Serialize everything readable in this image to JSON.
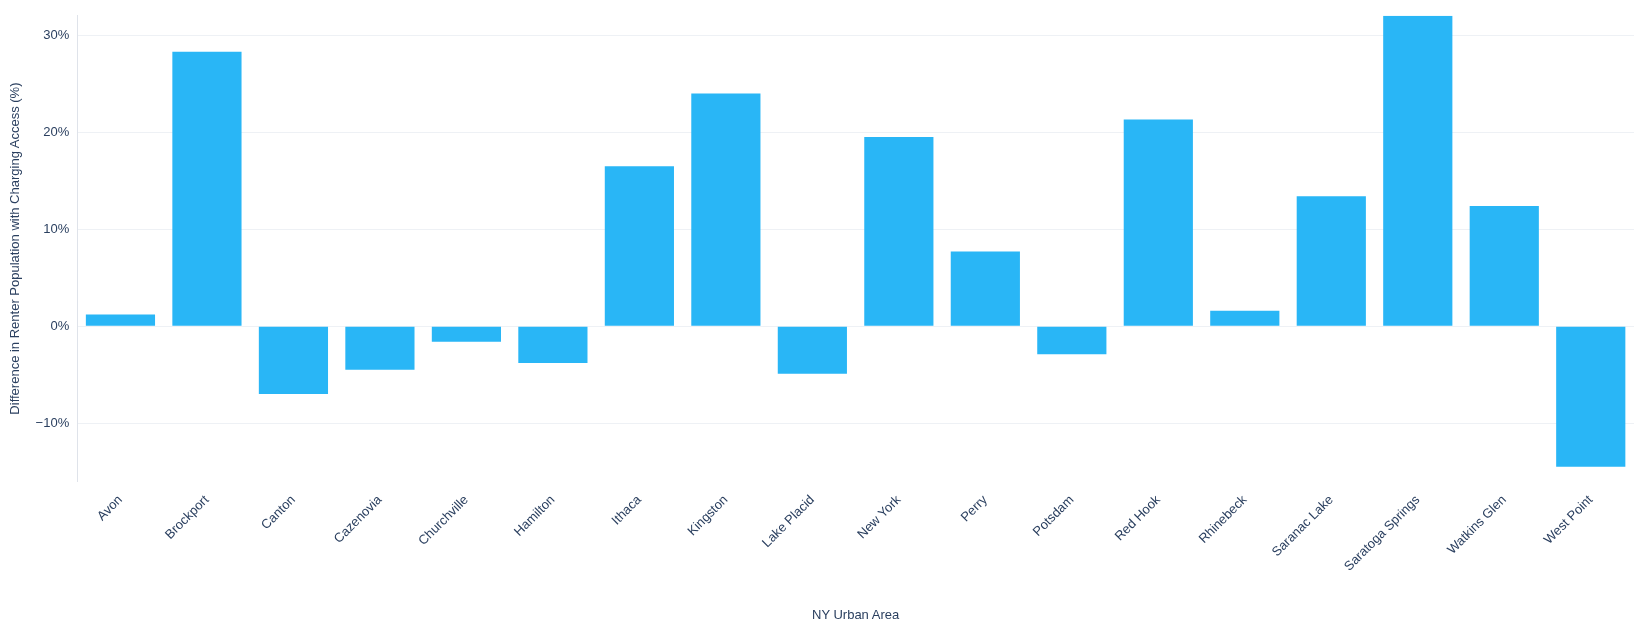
{
  "chart_data": {
    "type": "bar",
    "xlabel": "NY Urban Area",
    "ylabel": "Difference in Renter Population with Charging Access (%)",
    "categories": [
      "Avon",
      "Brockport",
      "Canton",
      "Cazenovia",
      "Churchville",
      "Hamilton",
      "Ithaca",
      "Kingston",
      "Lake Placid",
      "New York",
      "Perry",
      "Potsdam",
      "Red Hook",
      "Rhinebeck",
      "Saranac Lake",
      "Saratoga Springs",
      "Watkins Glen",
      "West Point"
    ],
    "values": [
      1.2,
      28.3,
      -7.0,
      -4.5,
      -1.6,
      -3.8,
      16.5,
      24.0,
      -4.9,
      19.5,
      7.7,
      -2.9,
      21.3,
      1.6,
      13.4,
      32,
      12.4,
      -14.5
    ],
    "color": "#29b6f6",
    "ylim": [
      -16,
      32
    ],
    "yticks": [
      {
        "value": -10,
        "label": "−10%"
      },
      {
        "value": 0,
        "label": "0%"
      },
      {
        "value": 10,
        "label": "10%"
      },
      {
        "value": 20,
        "label": "20%"
      },
      {
        "value": 30,
        "label": "30%"
      }
    ],
    "grid": "y",
    "legend": false
  }
}
